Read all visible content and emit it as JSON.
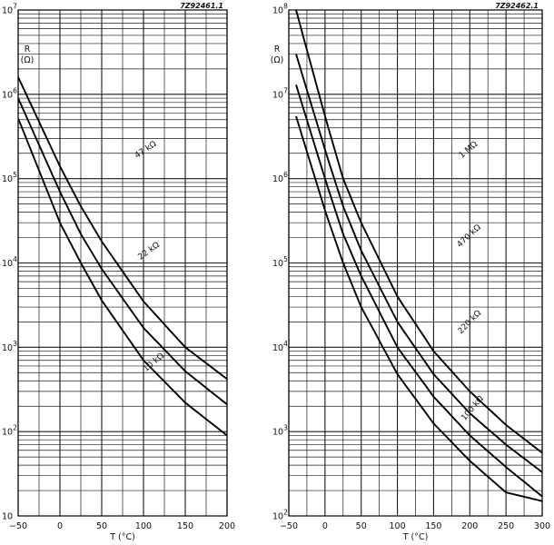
{
  "chart_data": [
    {
      "type": "line",
      "code": "7Z92461.1",
      "xlabel": "T (°C)",
      "ylabel_line1": "R",
      "ylabel_line2": "(Ω)",
      "xlim": [
        -50,
        200
      ],
      "ylim": [
        10,
        10000000
      ],
      "yscale": "log",
      "grid": true,
      "x_ticks": [
        "−50",
        "0",
        "50",
        "100",
        "150",
        "200"
      ],
      "y_ticks": [
        {
          "base": "10",
          "exp": ""
        },
        {
          "base": "10",
          "exp": "2"
        },
        {
          "base": "10",
          "exp": "3"
        },
        {
          "base": "10",
          "exp": "4"
        },
        {
          "base": "10",
          "exp": "5"
        },
        {
          "base": "10",
          "exp": "6"
        },
        {
          "base": "10",
          "exp": "7"
        }
      ],
      "series": [
        {
          "name": "47 kΩ",
          "x": [
            -50,
            0,
            25,
            50,
            100,
            150,
            200
          ],
          "y": [
            1600000,
            140000,
            47000,
            18000,
            3500,
            1000,
            420
          ]
        },
        {
          "name": "22 kΩ",
          "x": [
            -50,
            0,
            25,
            50,
            100,
            150,
            200
          ],
          "y": [
            900000,
            70000,
            22000,
            8500,
            1700,
            520,
            210
          ]
        },
        {
          "name": "10 kΩ",
          "x": [
            -50,
            0,
            25,
            50,
            100,
            150,
            200
          ],
          "y": [
            520000,
            30000,
            10000,
            3600,
            700,
            220,
            90
          ]
        }
      ]
    },
    {
      "type": "line",
      "code": "7Z92462.1",
      "xlabel": "T (°C)",
      "ylabel_line1": "R",
      "ylabel_line2": "(Ω)",
      "xlim": [
        -50,
        300
      ],
      "ylim": [
        100,
        100000000
      ],
      "yscale": "log",
      "grid": true,
      "x_ticks": [
        "−50",
        "0",
        "50",
        "100",
        "150",
        "200",
        "250",
        "300"
      ],
      "y_ticks": [
        {
          "base": "10",
          "exp": "2"
        },
        {
          "base": "10",
          "exp": "3"
        },
        {
          "base": "10",
          "exp": "4"
        },
        {
          "base": "10",
          "exp": "5"
        },
        {
          "base": "10",
          "exp": "6"
        },
        {
          "base": "10",
          "exp": "7"
        },
        {
          "base": "10",
          "exp": "8"
        }
      ],
      "series": [
        {
          "name": "1 MΩ",
          "x": [
            -40,
            0,
            25,
            50,
            100,
            150,
            200,
            250,
            300
          ],
          "y": [
            100000000,
            5500000,
            1000000,
            300000,
            40000,
            9000,
            3000,
            1200,
            560
          ]
        },
        {
          "name": "470 kΩ",
          "x": [
            -40,
            0,
            25,
            50,
            100,
            150,
            200,
            250,
            300
          ],
          "y": [
            30000000,
            2200000,
            470000,
            140000,
            20000,
            4800,
            1650,
            700,
            330
          ]
        },
        {
          "name": "220 kΩ",
          "x": [
            -40,
            0,
            25,
            50,
            100,
            150,
            200,
            250,
            300
          ],
          "y": [
            13000000,
            1000000,
            220000,
            70000,
            10000,
            2600,
            900,
            380,
            170
          ]
        },
        {
          "name": "100 kΩ",
          "x": [
            -40,
            0,
            25,
            50,
            100,
            150,
            200,
            250,
            300
          ],
          "y": [
            5500000,
            420000,
            100000,
            30000,
            4800,
            1250,
            450,
            190,
            150
          ]
        }
      ]
    }
  ]
}
